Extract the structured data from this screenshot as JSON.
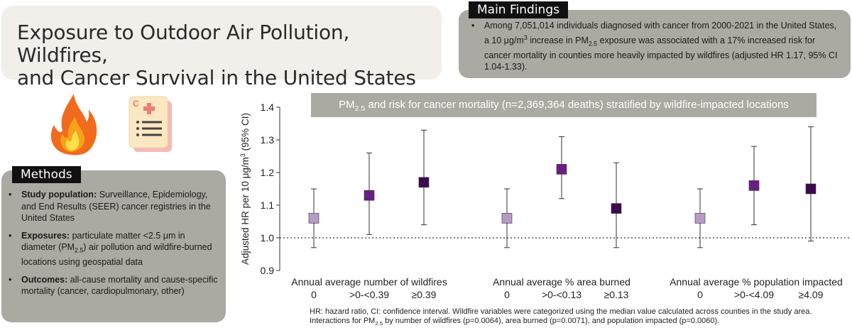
{
  "title": {
    "line1": "Exposure to Outdoor Air Pollution, Wildfires,",
    "line2": "and Cancer Survival in the United States"
  },
  "findings": {
    "label": "Main Findings",
    "text_a": "Among 7,051,014 individuals diagnosed with cancer from 2000-2021 in the United States, a 10 μg/m",
    "text_sup": "3",
    "text_b": " increase in PM",
    "text_sub": "2.5",
    "text_c": " exposure was associated with a 17% increased risk for cancer mortality in counties more heavily impacted by wildfires (adjusted HR 1.17, 95% CI 1.04-1.33)."
  },
  "icons": [
    "fire-icon",
    "medical-record-icon"
  ],
  "methods": {
    "label": "Methods",
    "items": [
      {
        "bold": "Study population:",
        "text_a": " Surveillance, Epidemiology, and End Results (SEER) cancer registries in the United States",
        "sub": "",
        "text_b": ""
      },
      {
        "bold": "Exposures:",
        "text_a": " particulate matter <2.5 μm in diameter (PM",
        "sub": "2.5",
        "text_b": ") air pollution and wildfire-burned locations using geospatial data"
      },
      {
        "bold": "Outcomes:",
        "text_a": " all-cause mortality and cause-specific mortality (cancer, cardiopulmonary, other)",
        "sub": "",
        "text_b": ""
      }
    ]
  },
  "banner": {
    "pre": "PM",
    "sub": "2.5",
    "post": " and risk for cancer mortality (n=2,369,364 deaths) stratified by wildfire-impacted locations"
  },
  "chart_data": {
    "type": "scatter",
    "title": "PM2.5 and risk for cancer mortality (n=2,369,364 deaths) stratified by wildfire-impacted locations",
    "ylabel_a": "Adjusted HR per 10 μg/m",
    "ylabel_sup": "3",
    "ylabel_b": " (95% CI)",
    "ylim": [
      0.9,
      1.4
    ],
    "yticks": [
      "0.9",
      "1.0",
      "1.1",
      "1.2",
      "1.3",
      "1.4"
    ],
    "reference_line": 1.0,
    "groups": [
      {
        "name": "Annual average number of wildfires",
        "categories": [
          "0",
          ">0-<0.39",
          "≥0.39"
        ],
        "hr": [
          1.06,
          1.13,
          1.17
        ],
        "ci_low": [
          0.97,
          1.01,
          1.04
        ],
        "ci_high": [
          1.15,
          1.26,
          1.33
        ]
      },
      {
        "name": "Annual average % area burned",
        "categories": [
          "0",
          ">0-<0.13",
          "≥0.13"
        ],
        "hr": [
          1.06,
          1.21,
          1.09
        ],
        "ci_low": [
          0.97,
          1.12,
          0.97
        ],
        "ci_high": [
          1.15,
          1.31,
          1.23
        ]
      },
      {
        "name": "Annual average % population impacted",
        "categories": [
          "0",
          ">0-<4.09",
          "≥4.09"
        ],
        "hr": [
          1.06,
          1.16,
          1.15
        ],
        "ci_low": [
          0.97,
          1.04,
          0.99
        ],
        "ci_high": [
          1.15,
          1.28,
          1.34
        ]
      }
    ],
    "marker_colors": [
      "#b79ac6",
      "#6a1e83",
      "#3b0b4e"
    ]
  },
  "footnote": {
    "a": "HR: hazard ratio, CI: confidence interval. Wildfire variables were categorized using the median value calculated across counties in the study area. Interactions for PM",
    "sub": "2.5",
    "b": " by number of wildfires (p=0.0064), area burned (p=0.0071), and population impacted (p=0.0060)."
  }
}
